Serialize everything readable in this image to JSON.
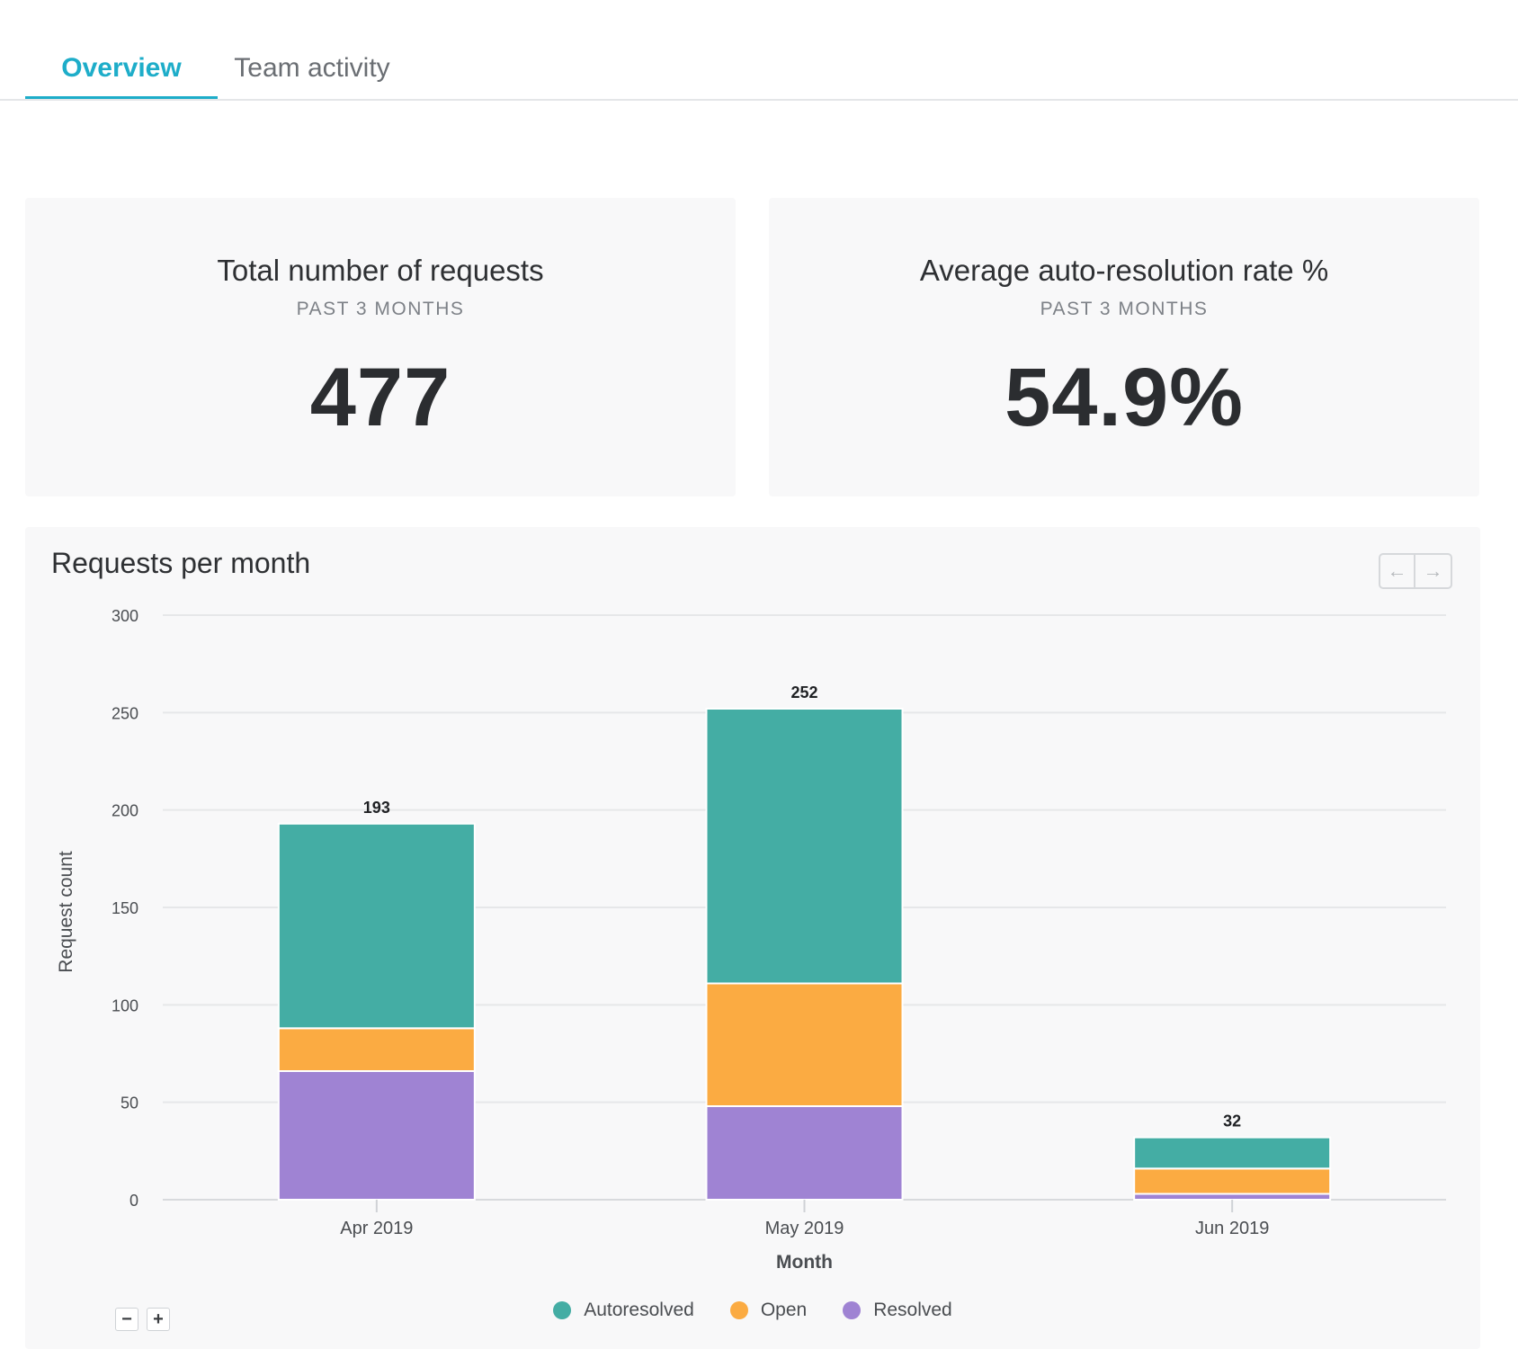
{
  "tabs": [
    {
      "label": "Overview",
      "active": true
    },
    {
      "label": "Team activity",
      "active": false
    }
  ],
  "kpis": [
    {
      "title": "Total number of requests",
      "subtitle": "PAST 3 MONTHS",
      "value": "477"
    },
    {
      "title": "Average auto-resolution rate %",
      "subtitle": "PAST 3 MONTHS",
      "value": "54.9%"
    }
  ],
  "chart_card": {
    "title": "Requests per month",
    "prev_icon": "arrow-left-icon",
    "next_icon": "arrow-right-icon",
    "prev_glyph": "←",
    "next_glyph": "→",
    "zoom_out_glyph": "−",
    "zoom_in_glyph": "+"
  },
  "colors": {
    "accent": "#1eadc9",
    "autoresolved": "#44ada4",
    "open": "#fbab42",
    "resolved": "#9f83d3"
  },
  "chart_data": {
    "type": "bar",
    "stacked": true,
    "title": "Requests per month",
    "xlabel": "Month",
    "ylabel": "Request count",
    "ylim": [
      0,
      300
    ],
    "yticks": [
      0,
      50,
      100,
      150,
      200,
      250,
      300
    ],
    "categories": [
      "Apr 2019",
      "May 2019",
      "Jun 2019"
    ],
    "series": [
      {
        "name": "Resolved",
        "color": "#9f83d3",
        "values": [
          66,
          48,
          3
        ]
      },
      {
        "name": "Open",
        "color": "#fbab42",
        "values": [
          22,
          63,
          13
        ]
      },
      {
        "name": "Autoresolved",
        "color": "#44ada4",
        "values": [
          105,
          141,
          16
        ]
      }
    ],
    "totals": [
      193,
      252,
      32
    ],
    "legend_order": [
      "Autoresolved",
      "Open",
      "Resolved"
    ],
    "legend_position": "bottom-center",
    "grid": true
  }
}
